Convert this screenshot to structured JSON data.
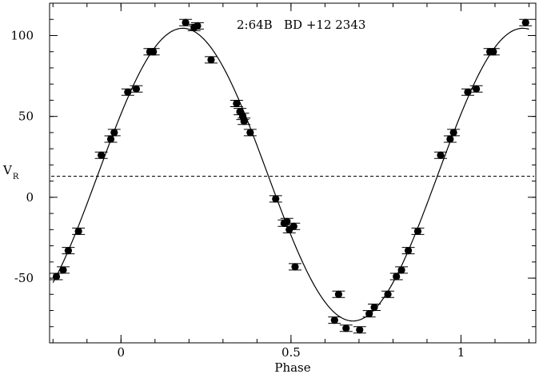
{
  "chart_data": {
    "type": "scatter",
    "title": "",
    "annotation": "2:64B   BD +12 2343",
    "xlabel": "Phase",
    "ylabel": "V",
    "ylabel_sub": "R",
    "xlim": [
      -0.21,
      1.22
    ],
    "ylim": [
      -90,
      120
    ],
    "xticks": [
      {
        "value": 0,
        "label": "0"
      },
      {
        "value": 0.5,
        "label": "0.5"
      },
      {
        "value": 1,
        "label": "1"
      }
    ],
    "yticks": [
      {
        "value": -50,
        "label": "-50"
      },
      {
        "value": 0,
        "label": "0"
      },
      {
        "value": 50,
        "label": "50"
      },
      {
        "value": 100,
        "label": "100"
      }
    ],
    "x_minor_step": 0.1,
    "y_minor_step": 10,
    "systemic_velocity": 13,
    "fit": {
      "gamma": 14,
      "amplitude": 90.5,
      "zero_crossing_phase": -0.068
    },
    "points": [
      {
        "x": -0.19,
        "y": -49
      },
      {
        "x": -0.17,
        "y": -45
      },
      {
        "x": -0.155,
        "y": -33
      },
      {
        "x": -0.125,
        "y": -21
      },
      {
        "x": -0.058,
        "y": 26
      },
      {
        "x": -0.03,
        "y": 36
      },
      {
        "x": -0.02,
        "y": 40
      },
      {
        "x": 0.02,
        "y": 65
      },
      {
        "x": 0.045,
        "y": 67
      },
      {
        "x": 0.085,
        "y": 90
      },
      {
        "x": 0.095,
        "y": 90
      },
      {
        "x": 0.19,
        "y": 108
      },
      {
        "x": 0.215,
        "y": 105
      },
      {
        "x": 0.225,
        "y": 106
      },
      {
        "x": 0.265,
        "y": 85
      },
      {
        "x": 0.34,
        "y": 58
      },
      {
        "x": 0.35,
        "y": 53
      },
      {
        "x": 0.358,
        "y": 50
      },
      {
        "x": 0.362,
        "y": 47
      },
      {
        "x": 0.38,
        "y": 40
      },
      {
        "x": 0.455,
        "y": -1
      },
      {
        "x": 0.48,
        "y": -16
      },
      {
        "x": 0.488,
        "y": -15
      },
      {
        "x": 0.495,
        "y": -20
      },
      {
        "x": 0.508,
        "y": -18
      },
      {
        "x": 0.512,
        "y": -43
      },
      {
        "x": 0.628,
        "y": -76
      },
      {
        "x": 0.64,
        "y": -60
      },
      {
        "x": 0.662,
        "y": -81
      },
      {
        "x": 0.702,
        "y": -82
      },
      {
        "x": 0.73,
        "y": -72
      },
      {
        "x": 0.745,
        "y": -68
      },
      {
        "x": 0.785,
        "y": -60
      },
      {
        "x": 0.81,
        "y": -49
      },
      {
        "x": 0.825,
        "y": -45
      },
      {
        "x": 0.845,
        "y": -33
      },
      {
        "x": 0.873,
        "y": -21
      },
      {
        "x": 0.94,
        "y": 26
      },
      {
        "x": 0.968,
        "y": 36
      },
      {
        "x": 0.978,
        "y": 40
      },
      {
        "x": 1.02,
        "y": 65
      },
      {
        "x": 1.045,
        "y": 67
      },
      {
        "x": 1.085,
        "y": 90
      },
      {
        "x": 1.095,
        "y": 90
      },
      {
        "x": 1.19,
        "y": 108
      }
    ]
  }
}
